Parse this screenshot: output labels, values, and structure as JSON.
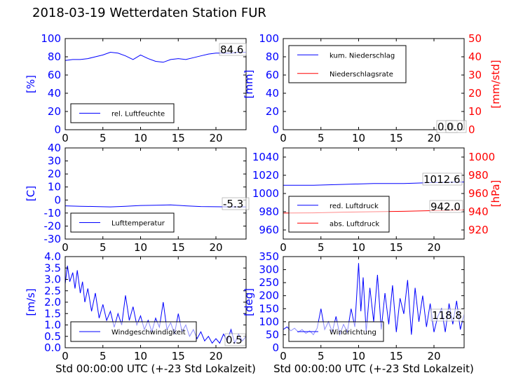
{
  "title": "2018-03-19 Wetterdaten Station FUR",
  "colors": {
    "primary": "#0000ff",
    "secondary": "#ff0000",
    "axis": "#000000"
  },
  "x_ticks": [
    "0",
    "5",
    "10",
    "15",
    "20"
  ],
  "x_label": "Std 00:00:00 UTC (+-23 Std Lokalzeit)",
  "chart_data": [
    {
      "type": "line",
      "title": "",
      "xlim": [
        0,
        24
      ],
      "ylim": [
        0,
        100
      ],
      "ylabel": "[%]",
      "yticks": [
        0,
        20,
        40,
        60,
        80,
        100
      ],
      "legend": "bottom-left",
      "series": [
        {
          "name": "rel. Luftfeuchte",
          "color": "#0000ff",
          "x": [
            0,
            1,
            2,
            3,
            4,
            5,
            6,
            7,
            8,
            9,
            10,
            11,
            12,
            13,
            14,
            15,
            16,
            17,
            18,
            19,
            20,
            21,
            22,
            23,
            24
          ],
          "y": [
            76,
            77,
            77,
            78,
            80,
            82,
            85,
            84,
            81,
            77,
            82,
            78,
            75,
            74,
            77,
            78,
            77,
            79,
            81,
            83,
            84,
            84,
            84,
            85,
            85
          ]
        }
      ],
      "annotations": [
        "84.6"
      ]
    },
    {
      "type": "line",
      "title": "",
      "xlim": [
        0,
        24
      ],
      "ylim": [
        0,
        100
      ],
      "ylim_right": [
        0,
        50
      ],
      "ylabel": "[mm]",
      "ylabel_right": "[mm/std]",
      "yticks": [
        0,
        20,
        40,
        60,
        80,
        100
      ],
      "yticks_right": [
        0,
        10,
        20,
        30,
        40,
        50
      ],
      "legend": "top-left",
      "series": [
        {
          "name": "kum. Niederschlag",
          "color": "#0000ff",
          "axis": "left",
          "x": [
            0,
            24
          ],
          "y": [
            0,
            0
          ]
        },
        {
          "name": "Niederschlagsrate",
          "color": "#ff0000",
          "axis": "right",
          "x": [
            0,
            24
          ],
          "y": [
            0,
            0
          ]
        }
      ],
      "annotations": [
        "0.0",
        "0.0"
      ]
    },
    {
      "type": "line",
      "title": "",
      "xlim": [
        0,
        24
      ],
      "ylim": [
        -30,
        40
      ],
      "ylabel": "[C]",
      "yticks": [
        -30,
        -20,
        -10,
        0,
        10,
        20,
        30,
        40
      ],
      "legend": "bottom-left",
      "series": [
        {
          "name": "Lufttemperatur",
          "color": "#0000ff",
          "x": [
            0,
            2,
            4,
            6,
            8,
            10,
            12,
            14,
            16,
            18,
            20,
            22,
            24
          ],
          "y": [
            -4.5,
            -4.8,
            -5.0,
            -5.3,
            -4.8,
            -4.2,
            -4.0,
            -3.8,
            -4.5,
            -5.0,
            -5.2,
            -5.3,
            -5.3
          ]
        }
      ],
      "annotations": [
        "-5.3"
      ]
    },
    {
      "type": "line",
      "title": "",
      "xlim": [
        0,
        24
      ],
      "ylim": [
        950,
        1050
      ],
      "ylim_right": [
        910,
        1010
      ],
      "ylabel": "",
      "ylabel_right": "[hPa]",
      "yticks": [
        960,
        980,
        1000,
        1020,
        1040
      ],
      "yticks_right": [
        920,
        940,
        960,
        980,
        1000
      ],
      "legend": "bottom-left",
      "series": [
        {
          "name": "red. Luftdruck",
          "color": "#0000ff",
          "axis": "left",
          "x": [
            0,
            4,
            8,
            12,
            16,
            20,
            24
          ],
          "y": [
            1009,
            1009,
            1010,
            1011,
            1011,
            1012,
            1012.6
          ]
        },
        {
          "name": "abs. Luftdruck",
          "color": "#ff0000",
          "axis": "right",
          "x": [
            0,
            4,
            8,
            12,
            16,
            20,
            24
          ],
          "y": [
            938.5,
            938.8,
            939.5,
            940.0,
            940.5,
            941.2,
            942.0
          ]
        }
      ],
      "annotations": [
        "1012.6",
        "942.0"
      ]
    },
    {
      "type": "line",
      "title": "",
      "xlim": [
        0,
        24
      ],
      "ylim": [
        0,
        4
      ],
      "ylabel": "[m/s]",
      "yticks": [
        0,
        0.5,
        1.0,
        1.5,
        2.0,
        2.5,
        3.0,
        3.5,
        4.0
      ],
      "legend": "bottom-left",
      "series": [
        {
          "name": "Windgeschwindigkeit",
          "color": "#0000ff",
          "x": [
            0,
            0.3,
            0.6,
            1,
            1.3,
            1.6,
            2,
            2.3,
            2.6,
            3,
            3.5,
            4,
            4.5,
            5,
            5.5,
            6,
            6.5,
            7,
            7.5,
            8,
            8.5,
            9,
            9.5,
            10,
            10.5,
            11,
            11.5,
            12,
            12.5,
            13,
            13.5,
            14,
            14.5,
            15,
            15.5,
            16,
            16.5,
            17,
            17.5,
            18,
            18.5,
            19,
            19.5,
            20,
            20.5,
            21,
            21.5,
            22,
            22.5,
            23,
            23.5,
            24
          ],
          "y": [
            2.8,
            3.6,
            2.9,
            3.3,
            2.6,
            3.4,
            2.4,
            2.9,
            2.0,
            2.6,
            1.6,
            2.4,
            1.3,
            1.9,
            1.2,
            1.6,
            0.9,
            1.5,
            1.0,
            2.3,
            1.2,
            1.8,
            1.0,
            1.4,
            0.8,
            1.2,
            0.7,
            1.3,
            0.9,
            2.0,
            0.8,
            1.1,
            0.6,
            1.5,
            0.7,
            1.0,
            0.5,
            0.8,
            0.4,
            0.7,
            0.3,
            0.5,
            0.2,
            0.4,
            0.2,
            0.6,
            0.3,
            0.8,
            0.2,
            0.6,
            0.3,
            0.5
          ]
        }
      ],
      "annotations": [
        "0.5"
      ]
    },
    {
      "type": "line",
      "title": "",
      "xlim": [
        0,
        24
      ],
      "ylim": [
        0,
        350
      ],
      "ylabel": "[deg]",
      "yticks": [
        0,
        50,
        100,
        150,
        200,
        250,
        300,
        350
      ],
      "legend": "bottom-left",
      "series": [
        {
          "name": "Windrichtung",
          "color": "#0000ff",
          "x": [
            0,
            0.5,
            1,
            1.5,
            2,
            2.5,
            3,
            3.5,
            4,
            4.5,
            5,
            5.5,
            6,
            6.5,
            7,
            7.5,
            8,
            8.5,
            9,
            9.5,
            10,
            10.3,
            10.6,
            11,
            11.5,
            12,
            12.5,
            13,
            13.5,
            14,
            14.5,
            15,
            15.5,
            16,
            16.5,
            17,
            17.5,
            18,
            18.5,
            19,
            19.5,
            20,
            20.5,
            21,
            21.5,
            22,
            22.5,
            23,
            23.5,
            24
          ],
          "y": [
            70,
            80,
            65,
            75,
            60,
            70,
            55,
            65,
            50,
            75,
            150,
            70,
            100,
            60,
            120,
            50,
            90,
            60,
            150,
            80,
            325,
            140,
            270,
            60,
            230,
            100,
            280,
            70,
            210,
            90,
            240,
            60,
            190,
            130,
            260,
            50,
            230,
            100,
            200,
            80,
            170,
            60,
            120,
            150,
            60,
            170,
            90,
            180,
            70,
            130
          ]
        }
      ],
      "annotations": [
        "118.8"
      ]
    }
  ]
}
